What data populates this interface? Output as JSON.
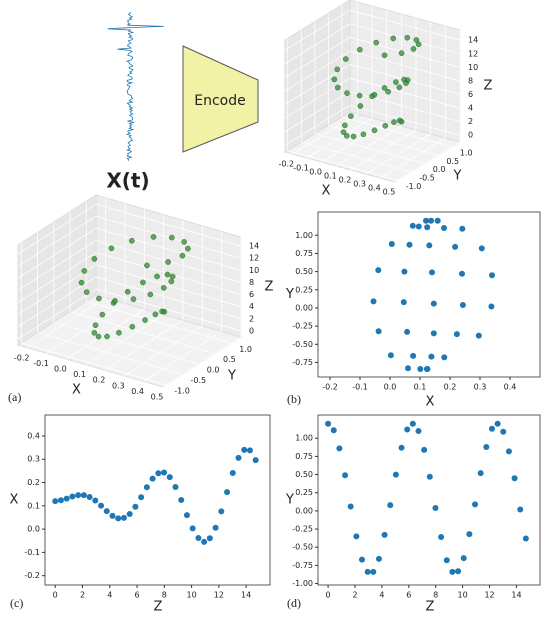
{
  "diagram": {
    "signal_label": "X(t)",
    "encoder_label": "Encode"
  },
  "chart_data": [
    {
      "type": "scatter3d",
      "color": "#2e8b2e",
      "xlabel": "X",
      "ylabel": "Y",
      "zlabel": "Z",
      "x": [
        0.12,
        0.124,
        0.131,
        0.14,
        0.146,
        0.146,
        0.138,
        0.123,
        0.101,
        0.077,
        0.057,
        0.046,
        0.048,
        0.065,
        0.096,
        0.137,
        0.18,
        0.217,
        0.24,
        0.243,
        0.223,
        0.181,
        0.125,
        0.06,
        0.003,
        -0.038,
        -0.055,
        -0.039,
        0.006,
        0.076,
        0.159,
        0.241,
        0.306,
        0.34,
        0.338,
        0.296
      ],
      "y": [
        1.2,
        1.11,
        0.86,
        0.49,
        0.06,
        -0.35,
        -0.67,
        -0.84,
        -0.84,
        -0.66,
        -0.33,
        0.08,
        0.5,
        0.87,
        1.12,
        1.2,
        1.1,
        0.84,
        0.47,
        0.04,
        -0.36,
        -0.68,
        -0.84,
        -0.83,
        -0.65,
        -0.32,
        0.09,
        0.52,
        0.88,
        1.13,
        1.2,
        1.09,
        0.82,
        0.45,
        0.02,
        -0.38
      ],
      "z": [
        0,
        0.42,
        0.84,
        1.26,
        1.68,
        2.1,
        2.52,
        2.94,
        3.36,
        3.78,
        4.2,
        4.62,
        5.04,
        5.46,
        5.88,
        6.3,
        6.72,
        7.14,
        7.56,
        7.98,
        8.4,
        8.82,
        9.24,
        9.66,
        10.08,
        10.5,
        10.92,
        11.34,
        11.76,
        12.18,
        12.6,
        13.02,
        13.44,
        13.86,
        14.28,
        14.7
      ],
      "xlim": [
        -0.25,
        0.5
      ],
      "ylim": [
        -1.1,
        1.3
      ],
      "zlim": [
        -1,
        15.5
      ],
      "xticks": [
        -0.2,
        -0.1,
        {
          "value": 0,
          "label": "0.0"
        },
        0.1,
        0.2,
        0.3,
        0.4,
        0.5
      ],
      "yticks": [
        {
          "value": -1,
          "label": "-1.0"
        },
        -0.5,
        {
          "value": 0,
          "label": "0.0"
        },
        0.5,
        {
          "value": 1,
          "label": "1.0"
        }
      ],
      "zticks": [
        0,
        2,
        4,
        6,
        8,
        10,
        12,
        14
      ]
    },
    {
      "type": "scatter3d",
      "panel": "(a)",
      "color": "#2e8b2e",
      "xlabel": "X",
      "ylabel": "Y",
      "zlabel": "Z",
      "x": [
        0.12,
        0.124,
        0.131,
        0.14,
        0.146,
        0.146,
        0.138,
        0.123,
        0.101,
        0.077,
        0.057,
        0.046,
        0.048,
        0.065,
        0.096,
        0.137,
        0.18,
        0.217,
        0.24,
        0.243,
        0.223,
        0.181,
        0.125,
        0.06,
        0.003,
        -0.038,
        -0.055,
        -0.039,
        0.006,
        0.076,
        0.159,
        0.241,
        0.306,
        0.34,
        0.338,
        0.296
      ],
      "y": [
        1.2,
        1.11,
        0.86,
        0.49,
        0.06,
        -0.35,
        -0.67,
        -0.84,
        -0.84,
        -0.66,
        -0.33,
        0.08,
        0.5,
        0.87,
        1.12,
        1.2,
        1.1,
        0.84,
        0.47,
        0.04,
        -0.36,
        -0.68,
        -0.84,
        -0.83,
        -0.65,
        -0.32,
        0.09,
        0.52,
        0.88,
        1.13,
        1.2,
        1.09,
        0.82,
        0.45,
        0.02,
        -0.38
      ],
      "z": [
        0,
        0.42,
        0.84,
        1.26,
        1.68,
        2.1,
        2.52,
        2.94,
        3.36,
        3.78,
        4.2,
        4.62,
        5.04,
        5.46,
        5.88,
        6.3,
        6.72,
        7.14,
        7.56,
        7.98,
        8.4,
        8.82,
        9.24,
        9.66,
        10.08,
        10.5,
        10.92,
        11.34,
        11.76,
        12.18,
        12.6,
        13.02,
        13.44,
        13.86,
        14.28,
        14.7
      ],
      "xlim": [
        -0.25,
        0.5
      ],
      "ylim": [
        -1.1,
        1.3
      ],
      "zlim": [
        -1,
        15.5
      ],
      "xticks": [
        -0.2,
        -0.1,
        {
          "value": 0,
          "label": "0.0"
        },
        0.1,
        0.2,
        0.3,
        0.4,
        0.5
      ],
      "yticks": [
        {
          "value": -1,
          "label": "-1.0"
        },
        -0.5,
        {
          "value": 0,
          "label": "0.0"
        },
        0.5,
        {
          "value": 1,
          "label": "1.0"
        }
      ],
      "zticks": [
        0,
        2,
        4,
        6,
        8,
        10,
        12,
        14
      ]
    },
    {
      "type": "scatter",
      "panel": "(b)",
      "color": "#1f77b4",
      "xlabel": "X",
      "ylabel": "Y",
      "x": [
        0.12,
        0.124,
        0.131,
        0.14,
        0.146,
        0.146,
        0.138,
        0.123,
        0.101,
        0.077,
        0.057,
        0.046,
        0.048,
        0.065,
        0.096,
        0.137,
        0.18,
        0.217,
        0.24,
        0.243,
        0.223,
        0.181,
        0.125,
        0.06,
        0.003,
        -0.038,
        -0.055,
        -0.039,
        0.006,
        0.076,
        0.159,
        0.241,
        0.306,
        0.34,
        0.338,
        0.296
      ],
      "values": [
        1.2,
        1.11,
        0.86,
        0.49,
        0.06,
        -0.35,
        -0.67,
        -0.84,
        -0.84,
        -0.66,
        -0.33,
        0.08,
        0.5,
        0.87,
        1.12,
        1.2,
        1.1,
        0.84,
        0.47,
        0.04,
        -0.36,
        -0.68,
        -0.84,
        -0.83,
        -0.65,
        -0.32,
        0.09,
        0.52,
        0.88,
        1.13,
        1.2,
        1.09,
        0.82,
        0.45,
        0.02,
        -0.38
      ],
      "xlim": [
        -0.24,
        0.5
      ],
      "ylim": [
        -0.95,
        1.32
      ],
      "xticks": [
        -0.2,
        -0.1,
        {
          "value": 0,
          "label": "0.0"
        },
        0.1,
        0.2,
        0.3,
        0.4
      ],
      "yticks": [
        -0.75,
        {
          "value": -0.5,
          "label": "-0.50"
        },
        -0.25,
        {
          "value": 0,
          "label": "0.00"
        },
        0.25,
        {
          "value": 0.5,
          "label": "0.50"
        },
        0.75,
        {
          "value": 1,
          "label": "1.00"
        }
      ]
    },
    {
      "type": "scatter",
      "panel": "(c)",
      "color": "#1f77b4",
      "xlabel": "Z",
      "ylabel": "X",
      "x": [
        0,
        0.42,
        0.84,
        1.26,
        1.68,
        2.1,
        2.52,
        2.94,
        3.36,
        3.78,
        4.2,
        4.62,
        5.04,
        5.46,
        5.88,
        6.3,
        6.72,
        7.14,
        7.56,
        7.98,
        8.4,
        8.82,
        9.24,
        9.66,
        10.08,
        10.5,
        10.92,
        11.34,
        11.76,
        12.18,
        12.6,
        13.02,
        13.44,
        13.86,
        14.28,
        14.7
      ],
      "values": [
        0.12,
        0.124,
        0.131,
        0.14,
        0.146,
        0.146,
        0.138,
        0.123,
        0.101,
        0.077,
        0.057,
        0.046,
        0.048,
        0.065,
        0.096,
        0.137,
        0.18,
        0.217,
        0.24,
        0.243,
        0.223,
        0.181,
        0.125,
        0.06,
        0.003,
        -0.038,
        -0.055,
        -0.039,
        0.006,
        0.076,
        0.159,
        0.241,
        0.306,
        0.34,
        0.338,
        0.296
      ],
      "xlim": [
        -0.75,
        15.75
      ],
      "ylim": [
        -0.24,
        0.49
      ],
      "xticks": [
        0,
        2,
        4,
        6,
        8,
        10,
        12,
        14
      ],
      "yticks": [
        -0.2,
        -0.1,
        {
          "value": 0,
          "label": "0.0"
        },
        0.1,
        0.2,
        0.3,
        0.4
      ]
    },
    {
      "type": "scatter",
      "panel": "(d)",
      "color": "#1f77b4",
      "xlabel": "Z",
      "ylabel": "Y",
      "x": [
        0,
        0.42,
        0.84,
        1.26,
        1.68,
        2.1,
        2.52,
        2.94,
        3.36,
        3.78,
        4.2,
        4.62,
        5.04,
        5.46,
        5.88,
        6.3,
        6.72,
        7.14,
        7.56,
        7.98,
        8.4,
        8.82,
        9.24,
        9.66,
        10.08,
        10.5,
        10.92,
        11.34,
        11.76,
        12.18,
        12.6,
        13.02,
        13.44,
        13.86,
        14.28,
        14.7
      ],
      "values": [
        1.2,
        1.11,
        0.86,
        0.49,
        0.06,
        -0.35,
        -0.67,
        -0.84,
        -0.84,
        -0.66,
        -0.33,
        0.08,
        0.5,
        0.87,
        1.12,
        1.2,
        1.1,
        0.84,
        0.47,
        0.04,
        -0.36,
        -0.68,
        -0.84,
        -0.83,
        -0.65,
        -0.32,
        0.09,
        0.52,
        0.88,
        1.13,
        1.2,
        1.09,
        0.82,
        0.45,
        0.02,
        -0.38
      ],
      "xlim": [
        -0.75,
        15.75
      ],
      "ylim": [
        -1.02,
        1.32
      ],
      "xticks": [
        0,
        2,
        4,
        6,
        8,
        10,
        12,
        14
      ],
      "yticks": [
        {
          "value": -1,
          "label": "-1.00"
        },
        -0.75,
        {
          "value": -0.5,
          "label": "-0.50"
        },
        -0.25,
        {
          "value": 0,
          "label": "0.00"
        },
        0.25,
        {
          "value": 0.5,
          "label": "0.50"
        },
        0.75,
        {
          "value": 1,
          "label": "1.00"
        }
      ]
    }
  ]
}
